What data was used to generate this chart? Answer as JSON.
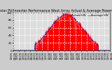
{
  "title": "Solar PV/Inverter Performance West Array Actual & Average Power Output",
  "title_fontsize": 3.5,
  "bg_color": "#cccccc",
  "plot_bg_color": "#dddddd",
  "actual_color": "#ff0000",
  "average_color": "#0000cc",
  "fill_color": "#ff0000",
  "fill_alpha": 1.0,
  "ylabel": "kW",
  "ylabel_fontsize": 3.0,
  "tick_fontsize": 2.8,
  "ylim": [
    0,
    100
  ],
  "yticks": [
    0,
    20,
    40,
    60,
    80,
    100
  ],
  "ytick_labels": [
    "0",
    "20",
    "40",
    "60",
    "80",
    "100"
  ],
  "n_points": 288,
  "legend_actual": "Actual kW",
  "legend_average": "Average kW",
  "legend_fontsize": 3.0,
  "peak_kw": 95,
  "noise_scale": 5
}
